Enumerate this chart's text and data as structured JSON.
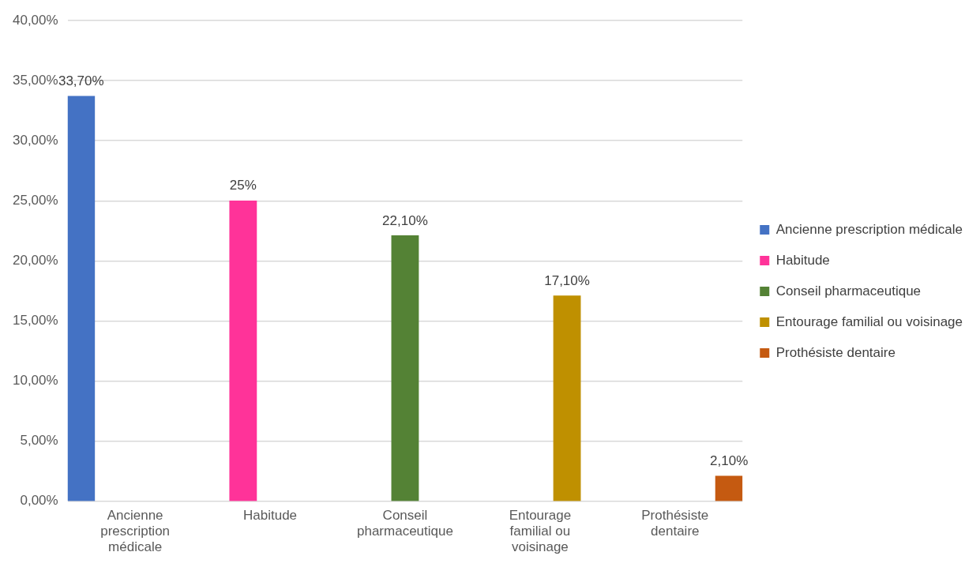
{
  "chart_data": {
    "type": "bar",
    "categories": [
      "Ancienne prescription médicale",
      "Habitude",
      "Conseil pharmaceutique",
      "Entourage familial ou voisinage",
      "Prothésiste dentaire"
    ],
    "series": [
      {
        "name": "Ancienne prescription médicale",
        "color": "#4472c4",
        "values": [
          33.7,
          null,
          null,
          null,
          null
        ],
        "value_labels": [
          "33,70%",
          null,
          null,
          null,
          null
        ]
      },
      {
        "name": "Habitude",
        "color": "#ff3399",
        "values": [
          null,
          25,
          null,
          null,
          null
        ],
        "value_labels": [
          null,
          "25%",
          null,
          null,
          null
        ]
      },
      {
        "name": "Conseil pharmaceutique",
        "color": "#548235",
        "values": [
          null,
          null,
          22.1,
          null,
          null
        ],
        "value_labels": [
          null,
          null,
          "22,10%",
          null,
          null
        ]
      },
      {
        "name": "Entourage familial ou voisinage",
        "color": "#bf9000",
        "values": [
          null,
          null,
          null,
          17.1,
          null
        ],
        "value_labels": [
          null,
          null,
          null,
          "17,10%",
          null
        ]
      },
      {
        "name": "Prothésiste dentaire",
        "color": "#c55a11",
        "values": [
          null,
          null,
          null,
          null,
          2.1
        ],
        "value_labels": [
          null,
          null,
          null,
          null,
          "2,10%"
        ]
      }
    ],
    "ylim": [
      0,
      40
    ],
    "yticks": [
      {
        "value": 0,
        "label": "0,00%"
      },
      {
        "value": 5,
        "label": "5,00%"
      },
      {
        "value": 10,
        "label": "10,00%"
      },
      {
        "value": 15,
        "label": "15,00%"
      },
      {
        "value": 20,
        "label": "20,00%"
      },
      {
        "value": 25,
        "label": "25,00%"
      },
      {
        "value": 30,
        "label": "30,00%"
      },
      {
        "value": 35,
        "label": "35,00%"
      },
      {
        "value": 40,
        "label": "40,00%"
      }
    ],
    "grid": "y",
    "legend": "right"
  }
}
